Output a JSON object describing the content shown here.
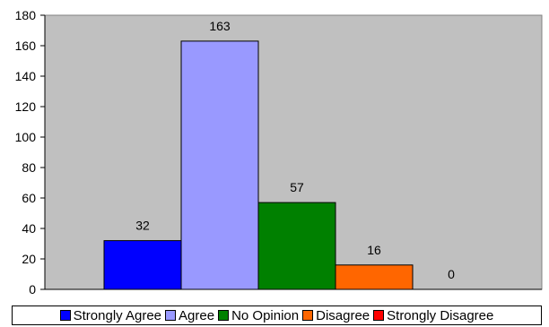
{
  "chart_data": {
    "type": "bar",
    "categories": [
      "Strongly Agree",
      "Agree",
      "No Opinion",
      "Disagree",
      "Strongly Disagree"
    ],
    "values": [
      32,
      163,
      57,
      16,
      0
    ],
    "colors": [
      "#0000ff",
      "#9999ff",
      "#008000",
      "#ff6600",
      "#ff0000"
    ],
    "ylim": [
      0,
      180
    ],
    "yticks": [
      0,
      20,
      40,
      60,
      80,
      100,
      120,
      140,
      160,
      180
    ],
    "plot_background": "#c0c0c0",
    "grid": false,
    "legend_position": "bottom"
  }
}
